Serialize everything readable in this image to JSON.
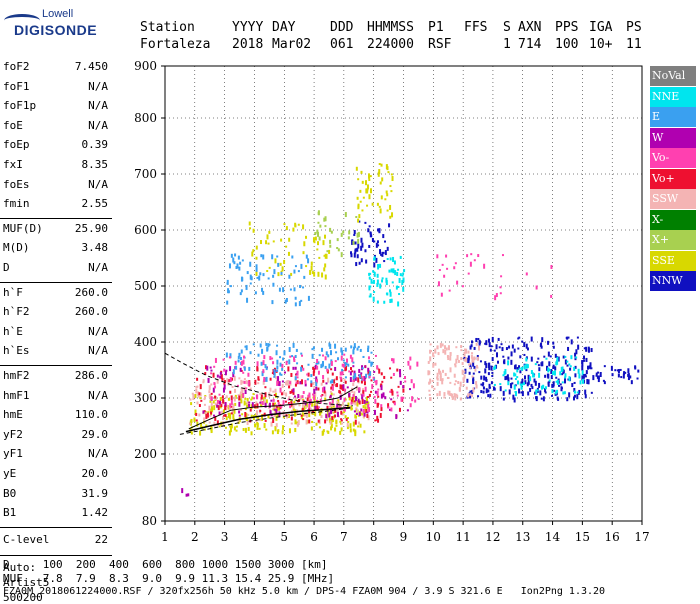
{
  "logo": {
    "line1": "Lowell",
    "line2": "DIGISONDE"
  },
  "header": {
    "row1": [
      "Station",
      "YYYY",
      "DAY",
      "DDD",
      "HHMMSS",
      "P1",
      "FFS",
      "S",
      "AXN",
      "PPS",
      "IGA",
      "PS"
    ],
    "row2": [
      "Fortaleza",
      "2018",
      "Mar02",
      "061",
      "224000",
      "RSF",
      "",
      "1",
      "714",
      "100",
      "10+",
      "11"
    ]
  },
  "params_a": [
    {
      "k": "foF2",
      "v": "7.450"
    },
    {
      "k": "foF1",
      "v": "N/A"
    },
    {
      "k": "foF1p",
      "v": "N/A"
    },
    {
      "k": "foE",
      "v": "N/A"
    },
    {
      "k": "foEp",
      "v": "0.39"
    },
    {
      "k": "fxI",
      "v": "8.35"
    },
    {
      "k": "foEs",
      "v": "N/A"
    },
    {
      "k": "fmin",
      "v": "2.55"
    }
  ],
  "params_b": [
    {
      "k": "MUF(D)",
      "v": "25.90"
    },
    {
      "k": "M(D)",
      "v": "3.48"
    },
    {
      "k": "D",
      "v": "N/A"
    }
  ],
  "params_c": [
    {
      "k": "h`F",
      "v": "260.0"
    },
    {
      "k": "h`F2",
      "v": "260.0"
    },
    {
      "k": "h`E",
      "v": "N/A"
    },
    {
      "k": "h`Es",
      "v": "N/A"
    }
  ],
  "params_d": [
    {
      "k": "hmF2",
      "v": "286.0"
    },
    {
      "k": "hmF1",
      "v": "N/A"
    },
    {
      "k": "hmE",
      "v": "110.0"
    },
    {
      "k": "yF2",
      "v": "29.0"
    },
    {
      "k": "yF1",
      "v": "N/A"
    },
    {
      "k": "yE",
      "v": "20.0"
    },
    {
      "k": "B0",
      "v": "31.9"
    },
    {
      "k": "B1",
      "v": "1.42"
    }
  ],
  "clevel": {
    "k": "C-level",
    "v": "22"
  },
  "auto": {
    "line1": "Auto:",
    "line2": "Artist5",
    "line3": "500200"
  },
  "legend": [
    {
      "label": "NoVal",
      "color": "#7f7f7f"
    },
    {
      "label": "NNE",
      "color": "#00e5ee"
    },
    {
      "label": "E",
      "color": "#3aa0f0"
    },
    {
      "label": "W",
      "color": "#b000b0"
    },
    {
      "label": "Vo-",
      "color": "#ff40b0"
    },
    {
      "label": "Vo+",
      "color": "#ee1030"
    },
    {
      "label": "SSW",
      "color": "#f4b4b4"
    },
    {
      "label": "X-",
      "color": "#008000"
    },
    {
      "label": "X+",
      "color": "#a8d050"
    },
    {
      "label": "SSE",
      "color": "#d8d800"
    },
    {
      "label": "NNW",
      "color": "#1010c0"
    }
  ],
  "bottom": {
    "d_row": "D     100  200  400  600  800 1000 1500 3000 [km]",
    "muf_row": "MUF   7.8  7.9  8.3  9.0  9.9 11.3 15.4 25.9 [MHz]",
    "footer": "FZA0M_2018061224000.RSF / 320fx256h 50 kHz 5.0 km / DPS-4 FZA0M 904 / 3.9 S 321.6 E   Ion2Png 1.3.20"
  },
  "chart_data": {
    "type": "scatter",
    "xlim": [
      1,
      17
    ],
    "ylim": [
      80,
      900
    ],
    "xticks": [
      "1",
      "2",
      "3",
      "4",
      "5",
      "6",
      "7",
      "8",
      "9",
      "10",
      "11",
      "12",
      "13",
      "14",
      "15",
      "16",
      "17"
    ],
    "yticks": [
      "80",
      "200",
      "300",
      "400",
      "500",
      "600",
      "700",
      "800",
      "900"
    ],
    "ytick_values": [
      80,
      200,
      300,
      400,
      500,
      600,
      700,
      800,
      900
    ],
    "grid": true,
    "trace_solid": {
      "x": [
        1.7,
        2.5,
        3.5,
        4.5,
        5.5,
        6.5,
        7.2
      ],
      "y": [
        240,
        250,
        262,
        270,
        276,
        280,
        283
      ]
    },
    "trace_profile": {
      "x": [
        1.8,
        2.5,
        3.2,
        4.0,
        4.8,
        5.5,
        6.2,
        6.8,
        7.45
      ],
      "y": [
        245,
        262,
        278,
        284,
        286,
        290,
        294,
        300,
        320
      ]
    },
    "trace_dashed_left": {
      "x": [
        1.0,
        1.6,
        2.4,
        3.3,
        4.3,
        5.3,
        6.3,
        7.3
      ],
      "y": [
        380,
        362,
        340,
        322,
        308,
        296,
        290,
        286
      ]
    },
    "trace_dashed_bottom": {
      "x": [
        1.5,
        2.5,
        3.5,
        4.5,
        5.5,
        6.5,
        7.2
      ],
      "y": [
        235,
        245,
        256,
        264,
        271,
        277,
        282
      ]
    },
    "clusters": [
      {
        "color": "#d8d800",
        "x": [
          1.8,
          7.8
        ],
        "y": [
          240,
          310
        ],
        "n": 260
      },
      {
        "color": "#f4b4b4",
        "x": [
          1.8,
          7.8
        ],
        "y": [
          255,
          340
        ],
        "n": 200
      },
      {
        "color": "#ee1030",
        "x": [
          2.0,
          9.0
        ],
        "y": [
          260,
          360
        ],
        "n": 200
      },
      {
        "color": "#b000b0",
        "x": [
          2.2,
          9.2
        ],
        "y": [
          270,
          360
        ],
        "n": 120
      },
      {
        "color": "#3aa0f0",
        "x": [
          3.0,
          8.0
        ],
        "y": [
          330,
          400
        ],
        "n": 120
      },
      {
        "color": "#ff40b0",
        "x": [
          2.5,
          9.5
        ],
        "y": [
          280,
          380
        ],
        "n": 150
      },
      {
        "color": "#1010c0",
        "x": [
          11.0,
          15.3
        ],
        "y": [
          300,
          410
        ],
        "n": 260
      },
      {
        "color": "#00e5ee",
        "x": [
          12.0,
          15.0
        ],
        "y": [
          310,
          380
        ],
        "n": 80
      },
      {
        "color": "#f4b4b4",
        "x": [
          9.8,
          11.5
        ],
        "y": [
          300,
          400
        ],
        "n": 120
      },
      {
        "color": "#d8d800",
        "x": [
          3.8,
          6.5
        ],
        "y": [
          520,
          620
        ],
        "n": 60
      },
      {
        "color": "#3aa0f0",
        "x": [
          3.0,
          5.8
        ],
        "y": [
          470,
          560
        ],
        "n": 70
      },
      {
        "color": "#1010c0",
        "x": [
          7.2,
          8.5
        ],
        "y": [
          540,
          620
        ],
        "n": 50
      },
      {
        "color": "#00e5ee",
        "x": [
          7.8,
          9.0
        ],
        "y": [
          470,
          560
        ],
        "n": 60
      },
      {
        "color": "#d8d800",
        "x": [
          7.4,
          8.6
        ],
        "y": [
          620,
          720
        ],
        "n": 50
      },
      {
        "color": "#a8d050",
        "x": [
          6.0,
          7.5
        ],
        "y": [
          560,
          640
        ],
        "n": 30
      },
      {
        "color": "#ff40b0",
        "x": [
          10.0,
          14.0
        ],
        "y": [
          480,
          560
        ],
        "n": 30
      },
      {
        "color": "#1010c0",
        "x": [
          15.0,
          17.0
        ],
        "y": [
          330,
          360
        ],
        "n": 40
      },
      {
        "color": "#b000b0",
        "x": [
          1.5,
          1.8
        ],
        "y": [
          125,
          140
        ],
        "n": 3
      }
    ]
  }
}
